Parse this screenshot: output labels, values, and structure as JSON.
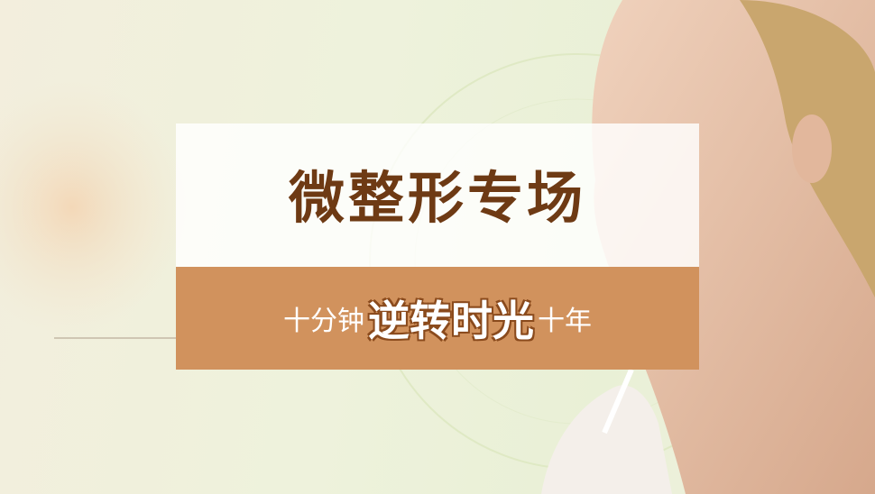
{
  "banner": {
    "title": "微整形专场",
    "subtitle": {
      "prefix": "十分钟",
      "highlight": "逆转时光",
      "suffix": "十年"
    }
  }
}
